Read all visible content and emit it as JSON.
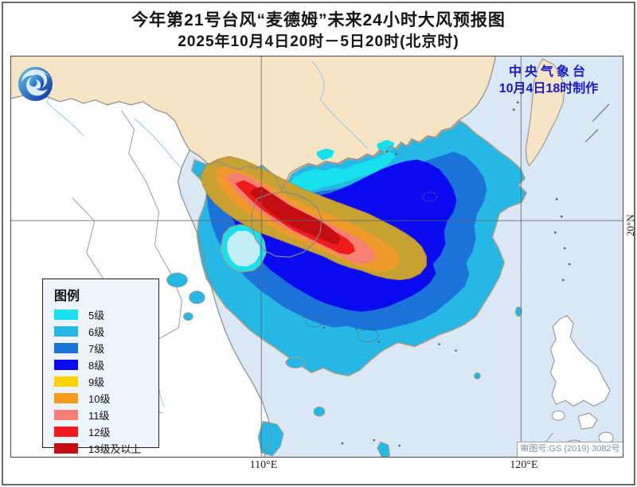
{
  "header": {
    "title": "今年第21号台风“麦德姆”未来24小时大风预报图",
    "subtitle": "2025年10月4日20时－5日20时(北京时)"
  },
  "agency": {
    "name": "中央气象台",
    "issued": "10月4日18时制作"
  },
  "legend": {
    "title": "图例",
    "items": [
      {
        "label": "5级",
        "color": "#16E1EC"
      },
      {
        "label": "6级",
        "color": "#25B7E6"
      },
      {
        "label": "7级",
        "color": "#1B73DA"
      },
      {
        "label": "8级",
        "color": "#0A0AEE"
      },
      {
        "label": "9级",
        "color": "#FFD003"
      },
      {
        "label": "10级",
        "color": "#F89B1C"
      },
      {
        "label": "11级",
        "color": "#F57F72"
      },
      {
        "label": "12级",
        "color": "#EE1B1A"
      },
      {
        "label": "13级及以上",
        "color": "#C30D10"
      }
    ]
  },
  "axes": {
    "lon1": "110°E",
    "lon2": "120°E",
    "lat1": "20°N"
  },
  "approval": "审图号:GS (2019) 3082号",
  "colors": {
    "sea": "#D9E8F4",
    "land_china": "#F7E4C4",
    "land_other": "#FFFFFF",
    "coastline": "#8C8C8C",
    "country_border": "#9A9AA0",
    "river": "#9CCBEA",
    "graticule": "#60606C",
    "contour_outline": "#C59B72",
    "grade9_map": "#C8A133",
    "grade10_map": "#F09A2C",
    "eye_fill": "#C3EDF5",
    "island_mark": "#5A6270",
    "accent_blue": "#1717CF",
    "approval_text": "#8A90A0",
    "legend_bg": "#EDF4FB"
  }
}
